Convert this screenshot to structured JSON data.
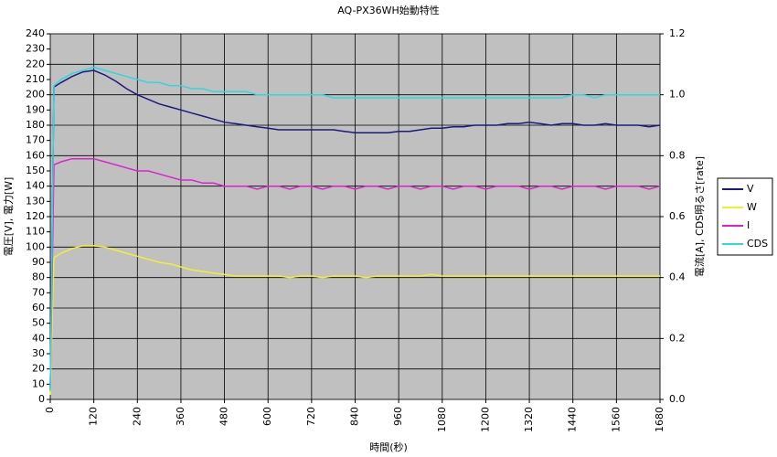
{
  "chart_data": {
    "type": "line",
    "title": "AQ-PX36WH始動特性",
    "x_label": "時間(秒)",
    "y_label": "電圧[V], 電力[W]",
    "y2_label": "電流[A], CDS明るさ[rate]",
    "x": [
      0,
      10,
      30,
      60,
      90,
      120,
      150,
      180,
      210,
      240,
      270,
      300,
      330,
      360,
      390,
      420,
      450,
      480,
      510,
      540,
      570,
      600,
      630,
      660,
      690,
      720,
      750,
      780,
      810,
      840,
      870,
      900,
      930,
      960,
      990,
      1020,
      1050,
      1080,
      1110,
      1140,
      1170,
      1200,
      1230,
      1260,
      1290,
      1320,
      1350,
      1380,
      1410,
      1440,
      1470,
      1500,
      1530,
      1560,
      1590,
      1620,
      1650,
      1680
    ],
    "series": [
      {
        "name": "V",
        "color": "#1a1a80",
        "axis": "y",
        "values": [
          5,
          205,
          208,
          212,
          215,
          216,
          213,
          209,
          204,
          200,
          197,
          194,
          192,
          190,
          188,
          186,
          184,
          182,
          181,
          180,
          179,
          178,
          177,
          177,
          177,
          177,
          177,
          177,
          176,
          175,
          175,
          175,
          175,
          176,
          176,
          177,
          178,
          178,
          179,
          179,
          180,
          180,
          180,
          181,
          181,
          182,
          181,
          180,
          181,
          181,
          180,
          180,
          181,
          180,
          180,
          180,
          179,
          180
        ]
      },
      {
        "name": "W",
        "color": "#f0f030",
        "axis": "y",
        "values": [
          3,
          93,
          96,
          99,
          101,
          101,
          100,
          98,
          96,
          94,
          92,
          90,
          89,
          87,
          85,
          84,
          83,
          82,
          81,
          81,
          81,
          81,
          81,
          80,
          81,
          81,
          80,
          81,
          81,
          81,
          80,
          81,
          81,
          81,
          81,
          81,
          82,
          81,
          81,
          81,
          81,
          81,
          81,
          81,
          81,
          81,
          81,
          81,
          81,
          81,
          81,
          81,
          81,
          81,
          81,
          81,
          81,
          81
        ]
      },
      {
        "name": "I",
        "color": "#e020d0",
        "axis": "y2",
        "values": [
          0.04,
          0.77,
          0.78,
          0.79,
          0.79,
          0.79,
          0.78,
          0.77,
          0.76,
          0.75,
          0.75,
          0.74,
          0.73,
          0.72,
          0.72,
          0.71,
          0.71,
          0.7,
          0.7,
          0.7,
          0.69,
          0.7,
          0.7,
          0.69,
          0.7,
          0.7,
          0.69,
          0.7,
          0.7,
          0.69,
          0.7,
          0.7,
          0.69,
          0.7,
          0.7,
          0.69,
          0.7,
          0.7,
          0.69,
          0.7,
          0.7,
          0.69,
          0.7,
          0.7,
          0.7,
          0.69,
          0.7,
          0.7,
          0.69,
          0.7,
          0.7,
          0.7,
          0.69,
          0.7,
          0.7,
          0.7,
          0.69,
          0.7
        ]
      },
      {
        "name": "CDS",
        "color": "#30d8e0",
        "axis": "y2",
        "values": [
          0.03,
          1.03,
          1.05,
          1.07,
          1.08,
          1.09,
          1.08,
          1.07,
          1.06,
          1.05,
          1.04,
          1.04,
          1.03,
          1.03,
          1.02,
          1.02,
          1.01,
          1.01,
          1.01,
          1.01,
          1.0,
          1.0,
          1.0,
          1.0,
          1.0,
          1.0,
          1.0,
          0.99,
          0.99,
          0.99,
          0.99,
          0.99,
          0.99,
          0.99,
          0.99,
          0.99,
          0.99,
          0.99,
          0.99,
          0.99,
          0.99,
          0.99,
          0.99,
          0.99,
          0.99,
          0.99,
          0.99,
          0.99,
          0.99,
          1.0,
          1.0,
          0.99,
          1.0,
          1.0,
          1.0,
          1.0,
          1.0,
          1.0
        ]
      }
    ],
    "xlim": [
      0,
      1680
    ],
    "xticks": [
      0,
      120,
      240,
      360,
      480,
      600,
      720,
      840,
      960,
      1080,
      1200,
      1320,
      1440,
      1560,
      1680
    ],
    "ylim": [
      0,
      240
    ],
    "yticks": [
      0,
      10,
      20,
      30,
      40,
      50,
      60,
      70,
      80,
      90,
      100,
      110,
      120,
      130,
      140,
      150,
      160,
      170,
      180,
      190,
      200,
      210,
      220,
      230,
      240
    ],
    "y2lim": [
      0,
      1.2
    ],
    "y2ticks": [
      {
        "value": 0,
        "label": "0.0"
      },
      0.2,
      0.4,
      0.6,
      0.8,
      {
        "value": 1,
        "label": "1.0"
      },
      1.2
    ],
    "grid": true,
    "legend": "right"
  }
}
